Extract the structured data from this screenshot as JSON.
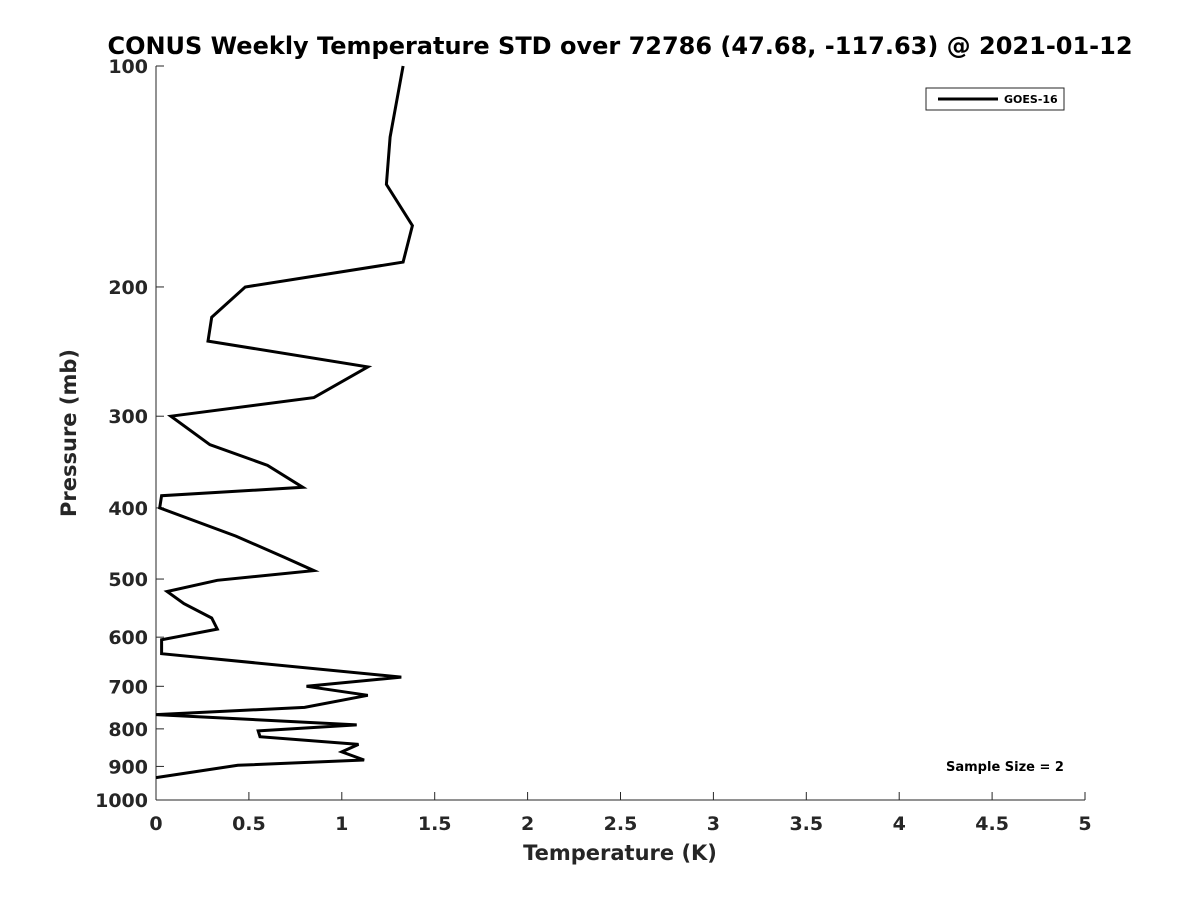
{
  "chart_data": {
    "type": "line",
    "title": "CONUS Weekly Temperature STD over 72786 (47.68, -117.63) @ 2021-01-12",
    "xlabel": "Temperature (K)",
    "ylabel": "Pressure (mb)",
    "xlim": [
      0,
      5
    ],
    "ylim": [
      100,
      1000
    ],
    "yscale": "log",
    "yreversed": true,
    "xticks": [
      0,
      0.5,
      1,
      1.5,
      2,
      2.5,
      3,
      3.5,
      4,
      4.5,
      5
    ],
    "xtick_labels": [
      "0",
      "0.5",
      "1",
      "1.5",
      "2",
      "2.5",
      "3",
      "3.5",
      "4",
      "4.5",
      "5"
    ],
    "yticks": [
      100,
      200,
      300,
      400,
      500,
      600,
      700,
      800,
      900,
      1000
    ],
    "ytick_labels": [
      "100",
      "200",
      "300",
      "400",
      "500",
      "600",
      "700",
      "800",
      "900",
      "1000"
    ],
    "grid": false,
    "legend_position": "top-right",
    "annotation": "Sample Size = 2",
    "series": [
      {
        "name": "GOES-16",
        "color": "#000000",
        "x": [
          1.33,
          1.26,
          1.24,
          1.38,
          1.33,
          0.48,
          0.3,
          0.28,
          1.14,
          0.85,
          0.08,
          0.29,
          0.6,
          0.79,
          0.03,
          0.02,
          0.43,
          0.69,
          0.85,
          0.33,
          0.06,
          0.15,
          0.3,
          0.33,
          0.03,
          0.03,
          1.32,
          0.81,
          1.14,
          0.8,
          0.0,
          1.08,
          0.55,
          0.56,
          1.09,
          1.0,
          1.12,
          0.44,
          0.0
        ],
        "y": [
          100,
          125,
          145,
          165,
          185,
          200,
          220,
          237,
          257,
          283,
          300,
          328,
          350,
          375,
          385,
          400,
          437,
          467,
          487,
          502,
          520,
          540,
          565,
          585,
          605,
          632,
          680,
          700,
          720,
          748,
          765,
          790,
          805,
          820,
          840,
          860,
          882,
          897,
          932
        ]
      }
    ]
  }
}
